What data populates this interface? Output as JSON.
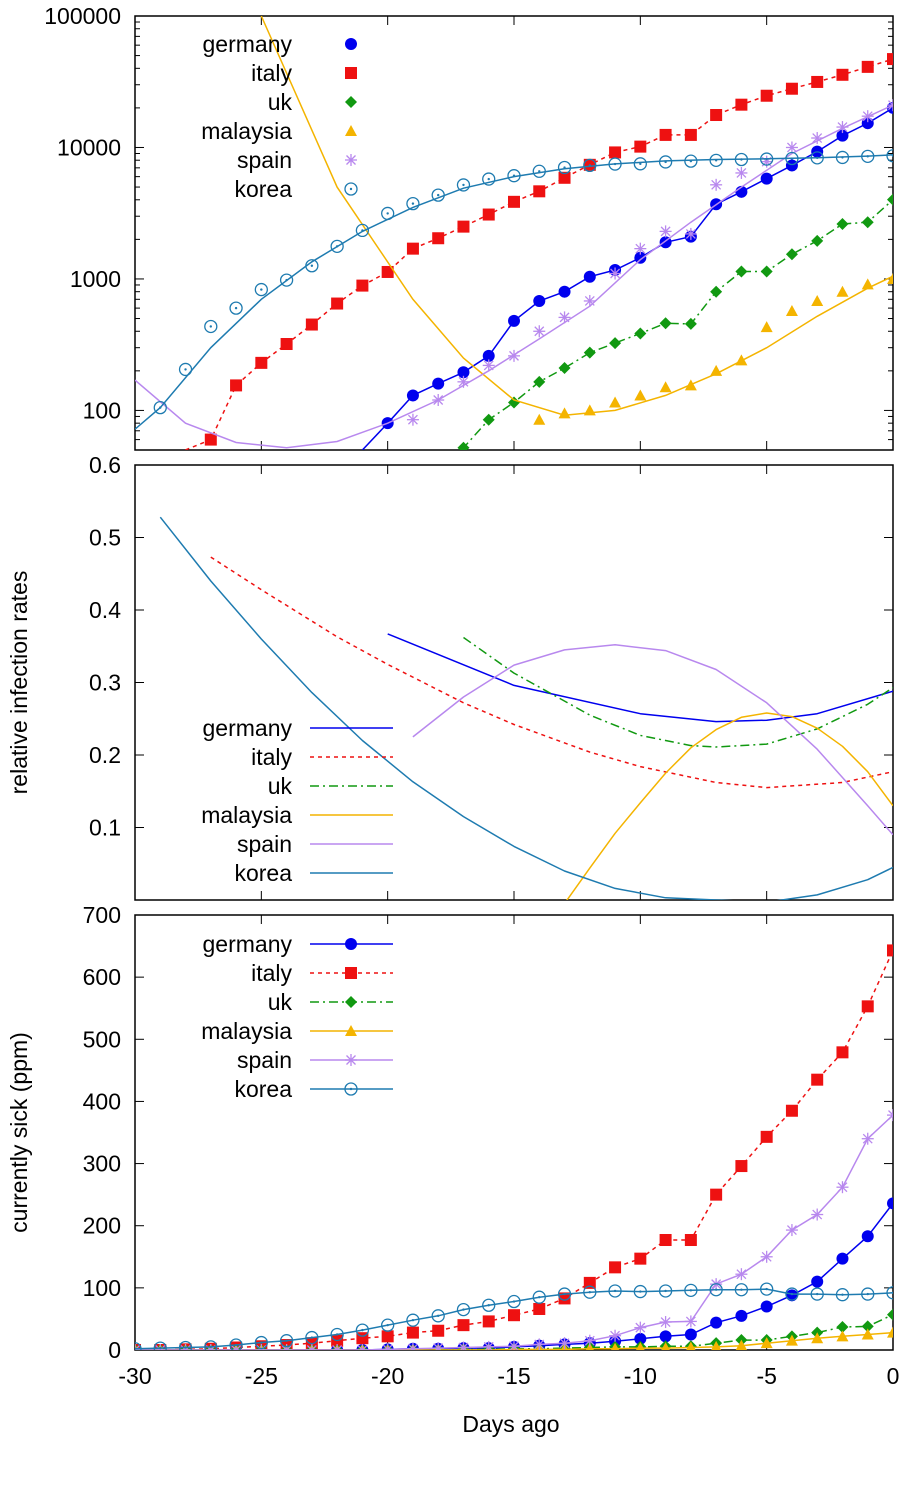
{
  "figure": {
    "x_axis_title": "Days ago",
    "x_ticks": [
      "-30",
      "-25",
      "-20",
      "-15",
      "-10",
      "-5",
      "0"
    ]
  },
  "chart_data": [
    {
      "type": "scatter",
      "title": "",
      "xlabel": "",
      "ylabel": "",
      "yscale": "log",
      "xlim": [
        -30,
        0
      ],
      "ylim": [
        50,
        100000
      ],
      "y_ticks": [
        "100",
        "1000",
        "10000",
        "100000"
      ],
      "legend_position": "top-left",
      "series": [
        {
          "name": "germany",
          "color": "#0000ee",
          "marker": "circle-filled",
          "x": [
            -20,
            -19,
            -18,
            -17,
            -16,
            -15,
            -14,
            -13,
            -12,
            -11,
            -10,
            -9,
            -8,
            -7,
            -6,
            -5,
            -4,
            -3,
            -2,
            -1,
            0
          ],
          "y": [
            80,
            130,
            160,
            195,
            260,
            480,
            680,
            800,
            1040,
            1170,
            1450,
            1900,
            2100,
            3700,
            4600,
            5800,
            7300,
            9300,
            12300,
            15300,
            20000
          ],
          "fit_x": [
            -21,
            0
          ],
          "fit_y": [
            50,
            20000
          ],
          "fit_dash": "solid"
        },
        {
          "name": "italy",
          "color": "#ee1111",
          "marker": "square-filled",
          "x": [
            -27,
            -26,
            -25,
            -24,
            -23,
            -22,
            -21,
            -20,
            -19,
            -18,
            -17,
            -16,
            -15,
            -14,
            -13,
            -12,
            -11,
            -10,
            -9,
            -8,
            -7,
            -6,
            -5,
            -4,
            -3,
            -2,
            -1,
            0
          ],
          "y": [
            60,
            155,
            230,
            320,
            450,
            650,
            890,
            1130,
            1700,
            2040,
            2500,
            3090,
            3860,
            4640,
            5880,
            7380,
            9170,
            10150,
            12460,
            12460,
            17660,
            21160,
            24750,
            27980,
            31510,
            35710,
            41030,
            47020
          ],
          "fit_x": [
            -28,
            0
          ],
          "fit_y": [
            50,
            47000
          ],
          "fit_dash": "dashed"
        },
        {
          "name": "uk",
          "color": "#119911",
          "marker": "diamond-filled",
          "x": [
            -17,
            -16,
            -15,
            -14,
            -13,
            -12,
            -11,
            -10,
            -9,
            -8,
            -7,
            -6,
            -5,
            -4,
            -3,
            -2,
            -1,
            0
          ],
          "y": [
            52,
            85,
            115,
            165,
            210,
            275,
            325,
            385,
            460,
            455,
            800,
            1140,
            1140,
            1540,
            1950,
            2620,
            2700,
            4010
          ],
          "fit_x": [
            -17,
            0
          ],
          "fit_y": [
            50,
            4000
          ],
          "fit_dash": "dashdot"
        },
        {
          "name": "malaysia",
          "color": "#f4b400",
          "marker": "triangle-filled",
          "x": [
            -14,
            -13,
            -12,
            -11,
            -10,
            -9,
            -8,
            -7,
            -6,
            -5,
            -4,
            -3,
            -2,
            -1,
            0
          ],
          "y": [
            85,
            95,
            100,
            115,
            130,
            150,
            155,
            200,
            240,
            430,
            570,
            680,
            800,
            910,
            1000
          ],
          "fit_x": [
            -25,
            0
          ],
          "fit_y": [
            100000,
            1000
          ],
          "fit_dash": "solid"
        },
        {
          "name": "spain",
          "color": "#b888ee",
          "marker": "star",
          "x": [
            -19,
            -18,
            -17,
            -16,
            -15,
            -14,
            -13,
            -12,
            -11,
            -10,
            -9,
            -8,
            -7,
            -6,
            -5,
            -4,
            -3,
            -2,
            -1,
            0
          ],
          "y": [
            85,
            120,
            165,
            220,
            260,
            400,
            510,
            680,
            1100,
            1700,
            2300,
            2200,
            5200,
            6400,
            7800,
            10000,
            11800,
            14300,
            17300,
            21000
          ],
          "fit_x": [
            -30,
            0
          ],
          "fit_y": [
            170,
            21000
          ],
          "fit_dash": "solid"
        },
        {
          "name": "korea",
          "color": "#1e7bb0",
          "marker": "circle-open-dot",
          "x": [
            -29,
            -28,
            -27,
            -26,
            -25,
            -24,
            -23,
            -22,
            -21,
            -20,
            -19,
            -18,
            -17,
            -16,
            -15,
            -14,
            -13,
            -12,
            -11,
            -10,
            -9,
            -8,
            -7,
            -6,
            -5,
            -4,
            -3,
            -2,
            -1,
            0
          ],
          "y": [
            105,
            205,
            435,
            600,
            830,
            980,
            1260,
            1770,
            2340,
            3150,
            3740,
            4340,
            5190,
            5750,
            6100,
            6590,
            7040,
            7310,
            7480,
            7510,
            7760,
            7870,
            7980,
            8100,
            8160,
            8240,
            8340,
            8400,
            8560,
            8650
          ],
          "fit_x": [
            -30,
            0
          ],
          "fit_y": [
            72,
            8800
          ],
          "fit_dash": "solid"
        }
      ]
    },
    {
      "type": "line",
      "title": "",
      "xlabel": "",
      "ylabel": "relative infection rates",
      "xlim": [
        -30,
        0
      ],
      "ylim": [
        0.0,
        0.6
      ],
      "y_ticks": [
        "0.1",
        "0.2",
        "0.3",
        "0.4",
        "0.5",
        "0.6"
      ],
      "legend_position": "left",
      "series": [
        {
          "name": "germany",
          "color": "#0000ee",
          "dash": "solid",
          "x": [
            -20,
            -15,
            -10,
            -7,
            -5,
            -3,
            0
          ],
          "y": [
            0.367,
            0.296,
            0.257,
            0.246,
            0.248,
            0.257,
            0.288
          ]
        },
        {
          "name": "italy",
          "color": "#ee1111",
          "dash": "dashed",
          "x": [
            -27,
            -25,
            -22,
            -20,
            -17,
            -15,
            -12,
            -10,
            -7,
            -5,
            -2,
            0
          ],
          "y": [
            0.473,
            0.428,
            0.363,
            0.325,
            0.272,
            0.242,
            0.204,
            0.184,
            0.162,
            0.155,
            0.162,
            0.177
          ]
        },
        {
          "name": "uk",
          "color": "#119911",
          "dash": "dashdot",
          "x": [
            -17,
            -15,
            -12,
            -10,
            -8,
            -7,
            -5,
            -3,
            -1,
            0
          ],
          "y": [
            0.362,
            0.313,
            0.255,
            0.227,
            0.213,
            0.211,
            0.215,
            0.236,
            0.27,
            0.293
          ]
        },
        {
          "name": "malaysia",
          "color": "#f4b400",
          "dash": "solid",
          "x": [
            -13,
            -12,
            -11,
            -10,
            -9,
            -8,
            -7,
            -6,
            -5,
            -4,
            -3,
            -2,
            -1,
            0
          ],
          "y": [
            -0.005,
            0.044,
            0.092,
            0.134,
            0.175,
            0.21,
            0.235,
            0.252,
            0.258,
            0.253,
            0.237,
            0.212,
            0.177,
            0.13
          ]
        },
        {
          "name": "spain",
          "color": "#b888ee",
          "dash": "solid",
          "x": [
            -19,
            -17,
            -15,
            -13,
            -11,
            -9,
            -7,
            -5,
            -3,
            -1,
            0
          ],
          "y": [
            0.225,
            0.28,
            0.324,
            0.345,
            0.352,
            0.344,
            0.318,
            0.272,
            0.208,
            0.13,
            0.09
          ]
        },
        {
          "name": "korea",
          "color": "#1e7bb0",
          "dash": "solid",
          "x": [
            -29,
            -27,
            -25,
            -23,
            -21,
            -19,
            -17,
            -15,
            -13,
            -11,
            -9,
            -7,
            -5,
            -3,
            -1,
            0
          ],
          "y": [
            0.528,
            0.44,
            0.36,
            0.286,
            0.22,
            0.163,
            0.115,
            0.074,
            0.04,
            0.016,
            0.003,
            0.0,
            -0.003,
            0.007,
            0.028,
            0.045
          ]
        }
      ]
    },
    {
      "type": "line",
      "title": "",
      "xlabel": "Days ago",
      "ylabel": "currently sick (ppm)",
      "xlim": [
        -30,
        0
      ],
      "ylim": [
        0,
        700
      ],
      "y_ticks": [
        "0",
        "100",
        "200",
        "300",
        "400",
        "500",
        "600",
        "700"
      ],
      "legend_position": "top-left",
      "series": [
        {
          "name": "germany",
          "color": "#0000ee",
          "marker": "circle-filled",
          "dash": "solid",
          "x": [
            -30,
            -29,
            -28,
            -27,
            -26,
            -25,
            -24,
            -23,
            -22,
            -21,
            -20,
            -19,
            -18,
            -17,
            -16,
            -15,
            -14,
            -13,
            -12,
            -11,
            -10,
            -9,
            -8,
            -7,
            -6,
            -5,
            -4,
            -3,
            -2,
            -1,
            0
          ],
          "y": [
            0,
            0,
            0,
            0,
            0,
            0,
            0,
            0,
            0,
            0,
            1,
            2,
            2,
            3,
            3,
            5,
            7,
            9,
            11,
            14,
            18,
            22,
            25,
            44,
            55,
            70,
            88,
            110,
            147,
            183,
            236
          ]
        },
        {
          "name": "italy",
          "color": "#ee1111",
          "marker": "square-filled",
          "dash": "dashed",
          "x": [
            -30,
            -29,
            -28,
            -27,
            -26,
            -25,
            -24,
            -23,
            -22,
            -21,
            -20,
            -19,
            -18,
            -17,
            -16,
            -15,
            -14,
            -13,
            -12,
            -11,
            -10,
            -9,
            -8,
            -7,
            -6,
            -5,
            -4,
            -3,
            -2,
            -1,
            0
          ],
          "y": [
            0,
            0,
            1,
            2,
            4,
            6,
            8,
            11,
            15,
            19,
            22,
            28,
            31,
            40,
            46,
            56,
            66,
            83,
            108,
            133,
            147,
            177,
            177,
            250,
            296,
            343,
            385,
            435,
            479,
            553,
            643
          ]
        },
        {
          "name": "uk",
          "color": "#119911",
          "marker": "diamond-filled",
          "dash": "dashdot",
          "x": [
            -30,
            -29,
            -28,
            -27,
            -26,
            -25,
            -24,
            -23,
            -22,
            -21,
            -20,
            -19,
            -18,
            -17,
            -16,
            -15,
            -14,
            -13,
            -12,
            -11,
            -10,
            -9,
            -8,
            -7,
            -6,
            -5,
            -4,
            -3,
            -2,
            -1,
            0
          ],
          "y": [
            0,
            0,
            0,
            0,
            0,
            0,
            0,
            0,
            0,
            0,
            0,
            0,
            0,
            1,
            1,
            2,
            2,
            3,
            4,
            5,
            5,
            6,
            6,
            11,
            16,
            16,
            22,
            28,
            37,
            38,
            57
          ]
        },
        {
          "name": "malaysia",
          "color": "#f4b400",
          "marker": "triangle-filled",
          "dash": "solid",
          "x": [
            -30,
            -29,
            -28,
            -27,
            -26,
            -25,
            -24,
            -23,
            -22,
            -21,
            -20,
            -19,
            -18,
            -17,
            -16,
            -15,
            -14,
            -13,
            -12,
            -11,
            -10,
            -9,
            -8,
            -7,
            -6,
            -5,
            -4,
            -3,
            -2,
            -1,
            0
          ],
          "y": [
            0,
            0,
            0,
            0,
            0,
            0,
            0,
            0,
            0,
            0,
            0,
            0,
            0,
            0,
            0,
            1,
            1,
            1,
            2,
            2,
            3,
            3,
            4,
            5,
            7,
            11,
            15,
            19,
            22,
            25,
            28
          ]
        },
        {
          "name": "spain",
          "color": "#b888ee",
          "marker": "star",
          "dash": "solid",
          "x": [
            -30,
            -29,
            -28,
            -27,
            -26,
            -25,
            -24,
            -23,
            -22,
            -21,
            -20,
            -19,
            -18,
            -17,
            -16,
            -15,
            -14,
            -13,
            -12,
            -11,
            -10,
            -9,
            -8,
            -7,
            -6,
            -5,
            -4,
            -3,
            -2,
            -1,
            0
          ],
          "y": [
            0,
            0,
            0,
            0,
            0,
            0,
            0,
            0,
            0,
            0,
            1,
            2,
            3,
            4,
            5,
            6,
            9,
            11,
            15,
            23,
            36,
            45,
            46,
            106,
            122,
            150,
            193,
            218,
            262,
            340,
            378
          ]
        },
        {
          "name": "korea",
          "color": "#1e7bb0",
          "marker": "circle-open-dot",
          "dash": "solid",
          "x": [
            -30,
            -29,
            -28,
            -27,
            -26,
            -25,
            -24,
            -23,
            -22,
            -21,
            -20,
            -19,
            -18,
            -17,
            -16,
            -15,
            -14,
            -13,
            -12,
            -11,
            -10,
            -9,
            -8,
            -7,
            -6,
            -5,
            -4,
            -3,
            -2,
            -1,
            0
          ],
          "y": [
            2,
            3,
            4,
            5,
            8,
            12,
            15,
            20,
            25,
            32,
            40,
            48,
            55,
            65,
            72,
            78,
            85,
            90,
            93,
            95,
            94,
            95,
            96,
            97,
            97,
            98,
            90,
            90,
            89,
            90,
            92
          ]
        }
      ]
    }
  ]
}
